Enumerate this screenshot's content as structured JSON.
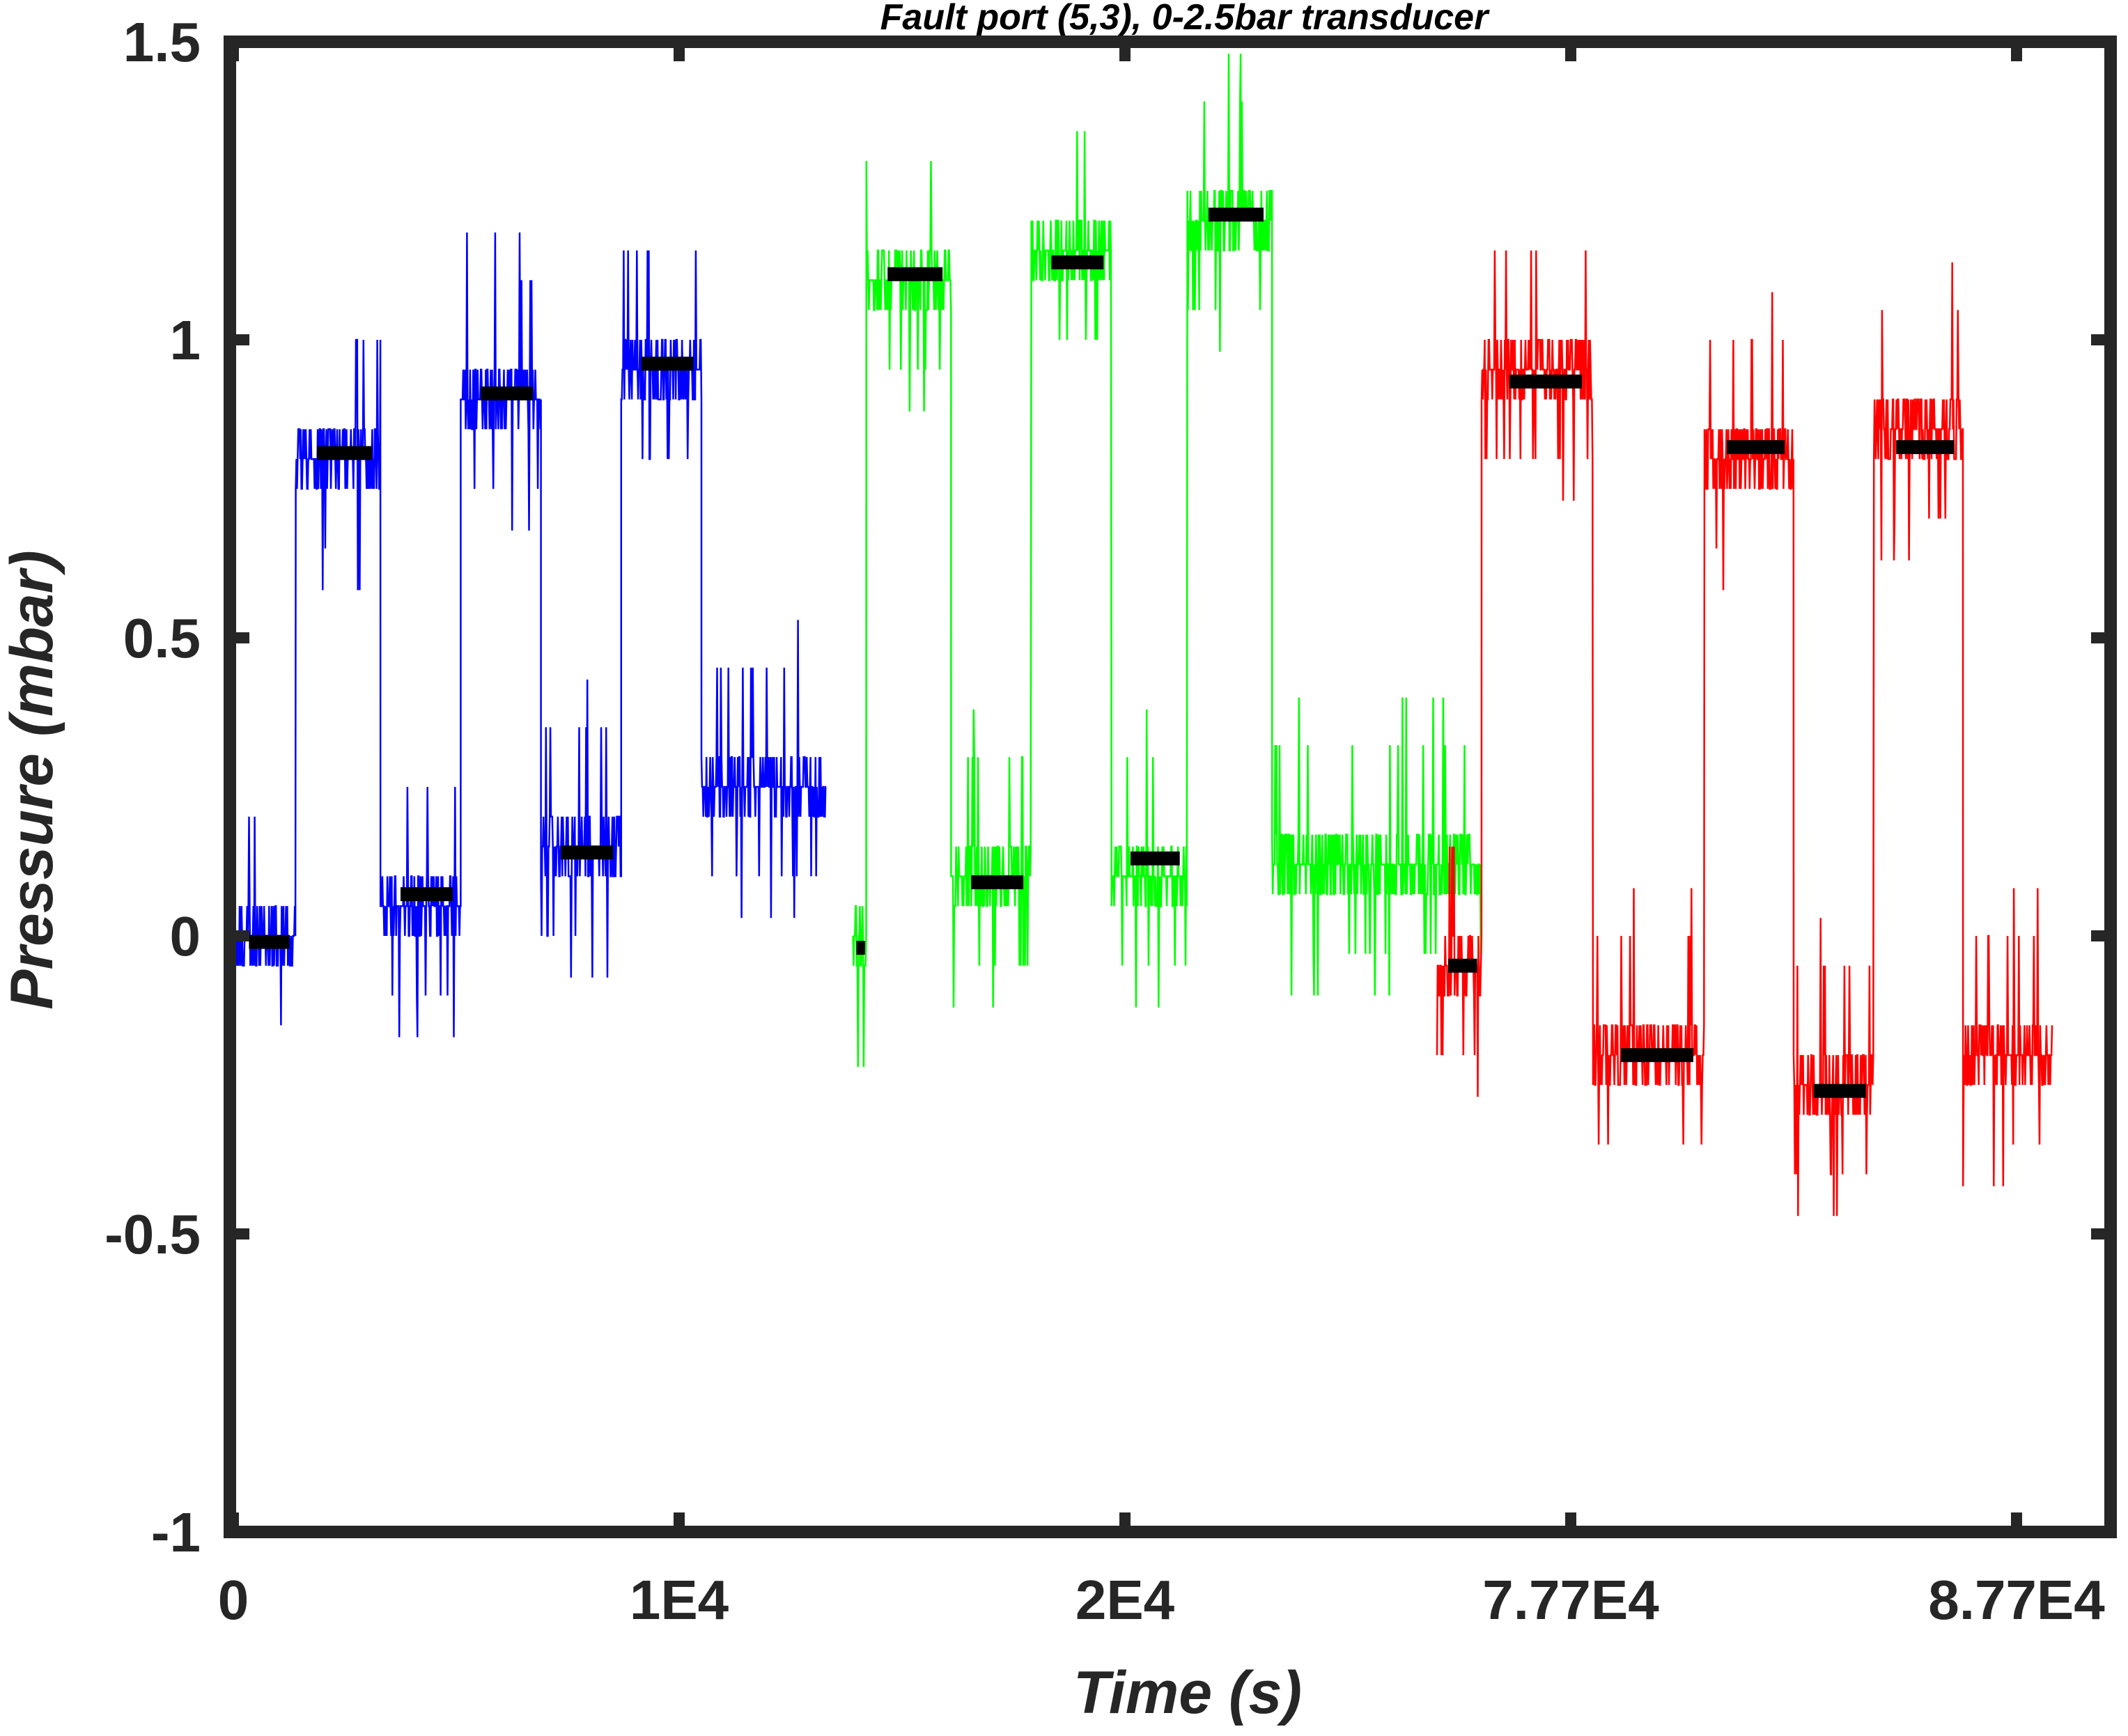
{
  "chart_data": {
    "type": "line",
    "title": "Fault port (5,3), 0-2.5bar transducer",
    "xlabel": "Time (s)",
    "ylabel": "Pressure (mbar)",
    "ylim": [
      -1,
      1.5
    ],
    "yticks": [
      "1.5",
      "1",
      "0.5",
      "0",
      "-0.5",
      "-1"
    ],
    "yticks_values": [
      1.5,
      1,
      0.5,
      0,
      -0.5,
      -1
    ],
    "xticks": [
      "0",
      "1E4",
      "2E4",
      "7.77E4",
      "8.77E4"
    ],
    "x_axis_note": "broken time axis (ticks printed as shown)",
    "grid": false,
    "line_colors": {
      "blue": "#0000ff",
      "green": "#00ff00",
      "red": "#ff0000",
      "mean": "#000000"
    },
    "series": [
      {
        "color": "blue",
        "segments": [
          {
            "t": [
              0,
              1400
            ],
            "base": 0.0,
            "mean": -0.01
          },
          {
            "t": [
              1400,
              3300
            ],
            "base": 0.8,
            "mean": 0.81
          },
          {
            "t": [
              3300,
              5100
            ],
            "base": 0.05,
            "mean": 0.07
          },
          {
            "t": [
              5100,
              6900
            ],
            "base": 0.9,
            "mean": 0.91
          },
          {
            "t": [
              6900,
              8700
            ],
            "base": 0.15,
            "mean": 0.14
          },
          {
            "t": [
              8700,
              10500
            ],
            "base": 0.95,
            "mean": 0.96
          },
          {
            "t": [
              10500,
              13300
            ],
            "base": 0.25,
            "mean": null
          }
        ]
      },
      {
        "color": "green",
        "segments": [
          {
            "t": [
              13900,
              14200
            ],
            "base": 0.0,
            "mean": -0.02
          },
          {
            "t": [
              14200,
              16100
            ],
            "base": 1.1,
            "mean": 1.11
          },
          {
            "t": [
              16100,
              17900
            ],
            "base": 0.1,
            "mean": 0.09
          },
          {
            "t": [
              17900,
              19700
            ],
            "base": 1.15,
            "mean": 1.13
          },
          {
            "t": [
              19700,
              21400
            ],
            "base": 0.1,
            "mean": 0.13
          },
          {
            "t": [
              21400,
              23300
            ],
            "base": 1.2,
            "mean": 1.21
          },
          {
            "t": [
              23300,
              28000
            ],
            "base": 0.12,
            "mean": null
          }
        ]
      },
      {
        "color": "red",
        "segments": [
          {
            "t": [
              74700,
              75700
            ],
            "base": -0.05,
            "mean": -0.05
          },
          {
            "t": [
              75700,
              78200
            ],
            "base": 0.95,
            "mean": 0.93
          },
          {
            "t": [
              78200,
              80700
            ],
            "base": -0.2,
            "mean": -0.2
          },
          {
            "t": [
              80700,
              82700
            ],
            "base": 0.8,
            "mean": 0.82
          },
          {
            "t": [
              82700,
              84500
            ],
            "base": -0.25,
            "mean": -0.26
          },
          {
            "t": [
              84500,
              86500
            ],
            "base": 0.85,
            "mean": 0.82
          },
          {
            "t": [
              86500,
              88500
            ],
            "base": -0.2,
            "mean": null
          }
        ]
      }
    ]
  }
}
